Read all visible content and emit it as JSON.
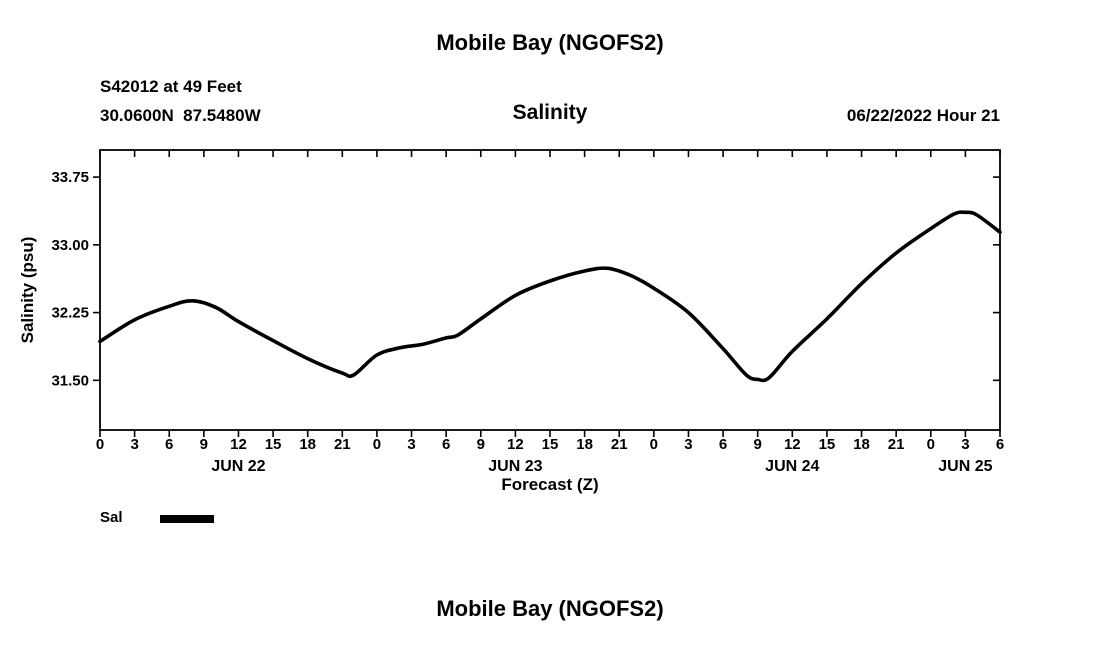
{
  "page": {
    "top_title": "Mobile Bay (NGOFS2)",
    "bottom_title": "Mobile Bay (NGOFS2)"
  },
  "header": {
    "station": "S42012 at 49 Feet",
    "coordinates": "30.0600N  87.5480W",
    "forecast_time": "06/22/2022 Hour 21"
  },
  "chart_data": {
    "type": "line",
    "title": "Salinity",
    "xlabel": "Forecast (Z)",
    "ylabel": "Salinity (psu)",
    "ylim": [
      30.95,
      34.05
    ],
    "yticks": [
      31.5,
      32.25,
      33.0,
      33.75
    ],
    "ytick_labels": [
      "31.50",
      "32.25",
      "33.00",
      "33.75"
    ],
    "x_total_hours": 78,
    "xtick_step_hours": 3,
    "xtick_labels": [
      "0",
      "3",
      "6",
      "9",
      "12",
      "15",
      "18",
      "21",
      "0",
      "3",
      "6",
      "9",
      "12",
      "15",
      "18",
      "21",
      "0",
      "3",
      "6",
      "9",
      "12",
      "15",
      "18",
      "21",
      "0",
      "3",
      "6"
    ],
    "day_labels": [
      {
        "label": "JUN 22",
        "hour": 12
      },
      {
        "label": "JUN 23",
        "hour": 36
      },
      {
        "label": "JUN 24",
        "hour": 60
      },
      {
        "label": "JUN 25",
        "hour": 75
      }
    ],
    "grid": false,
    "legend_position": "below-left",
    "legend": [
      {
        "name": "Sal",
        "color": "#000000"
      }
    ],
    "line_width": 3.6,
    "series": [
      {
        "name": "Sal",
        "color": "#000000",
        "points": [
          [
            0,
            31.93
          ],
          [
            3,
            32.17
          ],
          [
            6,
            32.32
          ],
          [
            8,
            32.38
          ],
          [
            10,
            32.31
          ],
          [
            12,
            32.15
          ],
          [
            15,
            31.94
          ],
          [
            18,
            31.74
          ],
          [
            21,
            31.58
          ],
          [
            22,
            31.56
          ],
          [
            24,
            31.78
          ],
          [
            26,
            31.86
          ],
          [
            28,
            31.9
          ],
          [
            30,
            31.97
          ],
          [
            31,
            32.0
          ],
          [
            33,
            32.18
          ],
          [
            36,
            32.44
          ],
          [
            39,
            32.6
          ],
          [
            42,
            32.71
          ],
          [
            44,
            32.74
          ],
          [
            46,
            32.66
          ],
          [
            48,
            32.52
          ],
          [
            51,
            32.25
          ],
          [
            54,
            31.85
          ],
          [
            56,
            31.56
          ],
          [
            57,
            31.51
          ],
          [
            58,
            31.53
          ],
          [
            60,
            31.82
          ],
          [
            63,
            32.18
          ],
          [
            66,
            32.57
          ],
          [
            69,
            32.91
          ],
          [
            72,
            33.18
          ],
          [
            74,
            33.34
          ],
          [
            75,
            33.36
          ],
          [
            76,
            33.33
          ],
          [
            78,
            33.14
          ]
        ]
      }
    ]
  }
}
